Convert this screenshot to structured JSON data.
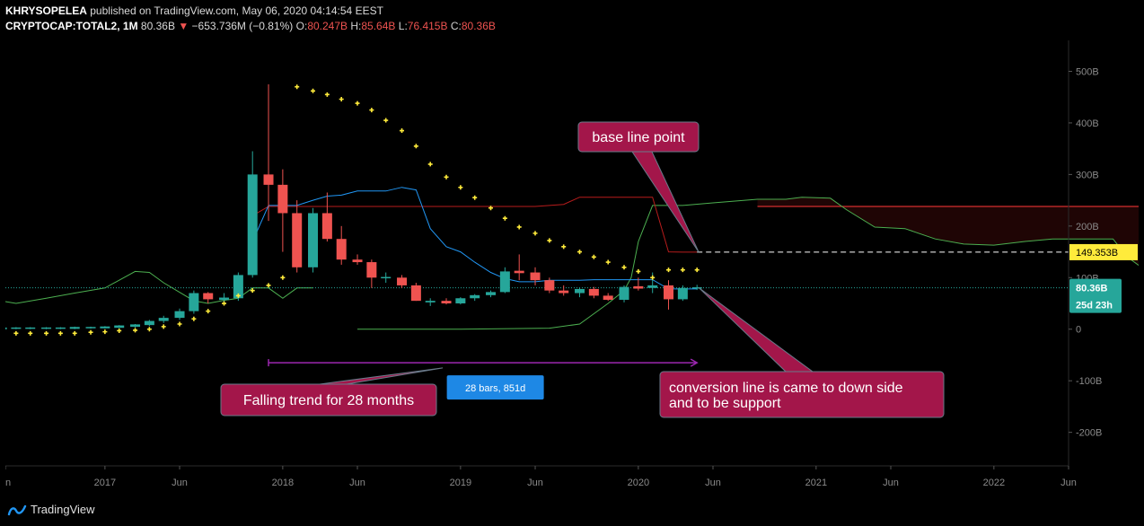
{
  "header": {
    "author": "KHRYSOPELEA",
    "published": "published on TradingView.com, May 06, 2020 04:14:54 EEST",
    "symbol": "CRYPTOCAP:TOTAL2, 1M",
    "last": "80.36B",
    "change": "−653.736M (−0.81%)",
    "o_label": "O:",
    "o_value": "80.247B",
    "h_label": "H:",
    "h_value": "85.64B",
    "l_label": "L:",
    "l_value": "76.415B",
    "c_label": "C:",
    "c_value": "80.36B"
  },
  "footer": {
    "brand": "TradingView"
  },
  "colors": {
    "up": "#26a69a",
    "down": "#ef5350",
    "kijun": "#b71c1c",
    "tenkan": "#2196f3",
    "span": "#4caf50",
    "sar": "#ffeb3b",
    "callout_bg": "#a3164a",
    "measure": "#9c27b0",
    "price_tag": "#26a69a",
    "level_tag": "#ffeb3b"
  },
  "chart_data": {
    "type": "candlestick",
    "ylim": [
      -265,
      560
    ],
    "y_ticks": [
      {
        "value": 500,
        "label": "500B"
      },
      {
        "value": 400,
        "label": "400B"
      },
      {
        "value": 300,
        "label": "300B"
      },
      {
        "value": 200,
        "label": "200B"
      },
      {
        "value": 100,
        "label": "100B"
      },
      {
        "value": 0,
        "label": "0"
      },
      {
        "value": -100,
        "label": "-100B"
      },
      {
        "value": -200,
        "label": "-200B"
      }
    ],
    "x_ticks": [
      {
        "value": 2017.0,
        "label": "2017"
      },
      {
        "value": 2017.42,
        "label": "Jun"
      },
      {
        "value": 2018.0,
        "label": "2018"
      },
      {
        "value": 2018.42,
        "label": "Jun"
      },
      {
        "value": 2019.0,
        "label": "2019"
      },
      {
        "value": 2019.42,
        "label": "Jun"
      },
      {
        "value": 2020.0,
        "label": "2020"
      },
      {
        "value": 2020.42,
        "label": "Jun"
      },
      {
        "value": 2021.0,
        "label": "2021"
      },
      {
        "value": 2021.42,
        "label": "Jun"
      },
      {
        "value": 2022.0,
        "label": "2022"
      },
      {
        "value": 2022.42,
        "label": "Jun"
      },
      {
        "value": 2016.42,
        "label": "n"
      }
    ],
    "candles": [
      {
        "t": 2016.08,
        "o": 0,
        "h": 3,
        "l": -2,
        "c": 1
      },
      {
        "t": 2016.17,
        "o": 1,
        "h": 3,
        "l": -1,
        "c": 1
      },
      {
        "t": 2016.25,
        "o": 1,
        "h": 3,
        "l": -1,
        "c": 1
      },
      {
        "t": 2016.33,
        "o": 1,
        "h": 3,
        "l": -1,
        "c": 1
      },
      {
        "t": 2016.42,
        "o": 1,
        "h": 4,
        "l": -1,
        "c": 2
      },
      {
        "t": 2016.5,
        "o": 2,
        "h": 4,
        "l": 0,
        "c": 2
      },
      {
        "t": 2016.58,
        "o": 2,
        "h": 4,
        "l": 0,
        "c": 2
      },
      {
        "t": 2016.67,
        "o": 2,
        "h": 4,
        "l": 0,
        "c": 2
      },
      {
        "t": 2016.75,
        "o": 2,
        "h": 4,
        "l": 0,
        "c": 2
      },
      {
        "t": 2016.83,
        "o": 2,
        "h": 5,
        "l": 0,
        "c": 3
      },
      {
        "t": 2016.92,
        "o": 3,
        "h": 5,
        "l": 1,
        "c": 3
      },
      {
        "t": 2017.0,
        "o": 3,
        "h": 6,
        "l": 1,
        "c": 4
      },
      {
        "t": 2017.08,
        "o": 4,
        "h": 8,
        "l": 2,
        "c": 6
      },
      {
        "t": 2017.17,
        "o": 6,
        "h": 10,
        "l": 3,
        "c": 8
      },
      {
        "t": 2017.25,
        "o": 8,
        "h": 18,
        "l": 6,
        "c": 16
      },
      {
        "t": 2017.33,
        "o": 16,
        "h": 26,
        "l": 12,
        "c": 22
      },
      {
        "t": 2017.42,
        "o": 22,
        "h": 40,
        "l": 18,
        "c": 35
      },
      {
        "t": 2017.5,
        "o": 35,
        "h": 75,
        "l": 30,
        "c": 70
      },
      {
        "t": 2017.58,
        "o": 70,
        "h": 72,
        "l": 50,
        "c": 58
      },
      {
        "t": 2017.67,
        "o": 58,
        "h": 70,
        "l": 48,
        "c": 60
      },
      {
        "t": 2017.75,
        "o": 60,
        "h": 110,
        "l": 55,
        "c": 105
      },
      {
        "t": 2017.83,
        "o": 105,
        "h": 345,
        "l": 100,
        "c": 300
      },
      {
        "t": 2017.92,
        "o": 300,
        "h": 475,
        "l": 210,
        "c": 280
      },
      {
        "t": 2018.0,
        "o": 280,
        "h": 310,
        "l": 150,
        "c": 225
      },
      {
        "t": 2018.08,
        "o": 225,
        "h": 250,
        "l": 110,
        "c": 120
      },
      {
        "t": 2018.17,
        "o": 120,
        "h": 235,
        "l": 110,
        "c": 225
      },
      {
        "t": 2018.25,
        "o": 225,
        "h": 265,
        "l": 170,
        "c": 175
      },
      {
        "t": 2018.33,
        "o": 175,
        "h": 200,
        "l": 125,
        "c": 135
      },
      {
        "t": 2018.42,
        "o": 135,
        "h": 145,
        "l": 125,
        "c": 130
      },
      {
        "t": 2018.5,
        "o": 130,
        "h": 135,
        "l": 80,
        "c": 100
      },
      {
        "t": 2018.58,
        "o": 100,
        "h": 110,
        "l": 90,
        "c": 100
      },
      {
        "t": 2018.67,
        "o": 100,
        "h": 105,
        "l": 80,
        "c": 85
      },
      {
        "t": 2018.75,
        "o": 85,
        "h": 90,
        "l": 55,
        "c": 55
      },
      {
        "t": 2018.83,
        "o": 52,
        "h": 60,
        "l": 45,
        "c": 55
      },
      {
        "t": 2018.92,
        "o": 55,
        "h": 60,
        "l": 48,
        "c": 50
      },
      {
        "t": 2019.0,
        "o": 50,
        "h": 62,
        "l": 48,
        "c": 60
      },
      {
        "t": 2019.08,
        "o": 60,
        "h": 68,
        "l": 55,
        "c": 66
      },
      {
        "t": 2019.17,
        "o": 66,
        "h": 75,
        "l": 62,
        "c": 72
      },
      {
        "t": 2019.25,
        "o": 72,
        "h": 120,
        "l": 70,
        "c": 112
      },
      {
        "t": 2019.33,
        "o": 112,
        "h": 145,
        "l": 95,
        "c": 110
      },
      {
        "t": 2019.42,
        "o": 110,
        "h": 120,
        "l": 85,
        "c": 95
      },
      {
        "t": 2019.5,
        "o": 95,
        "h": 100,
        "l": 70,
        "c": 75
      },
      {
        "t": 2019.58,
        "o": 75,
        "h": 85,
        "l": 65,
        "c": 70
      },
      {
        "t": 2019.67,
        "o": 70,
        "h": 80,
        "l": 62,
        "c": 78
      },
      {
        "t": 2019.75,
        "o": 78,
        "h": 82,
        "l": 60,
        "c": 65
      },
      {
        "t": 2019.83,
        "o": 65,
        "h": 70,
        "l": 55,
        "c": 57
      },
      {
        "t": 2019.92,
        "o": 57,
        "h": 85,
        "l": 52,
        "c": 82
      },
      {
        "t": 2020.0,
        "o": 82,
        "h": 100,
        "l": 75,
        "c": 80
      },
      {
        "t": 2020.08,
        "o": 80,
        "h": 110,
        "l": 70,
        "c": 85
      },
      {
        "t": 2020.17,
        "o": 85,
        "h": 95,
        "l": 38,
        "c": 58
      },
      {
        "t": 2020.25,
        "o": 58,
        "h": 85,
        "l": 55,
        "c": 80
      },
      {
        "t": 2020.33,
        "o": 80,
        "h": 86,
        "l": 76,
        "c": 80
      }
    ],
    "tenkan": [
      [
        2017.83,
        170
      ],
      [
        2017.92,
        240
      ],
      [
        2018.0,
        240
      ],
      [
        2018.08,
        240
      ],
      [
        2018.17,
        250
      ],
      [
        2018.25,
        258
      ],
      [
        2018.33,
        260
      ],
      [
        2018.42,
        268
      ],
      [
        2018.5,
        268
      ],
      [
        2018.58,
        268
      ],
      [
        2018.67,
        275
      ],
      [
        2018.75,
        270
      ],
      [
        2018.83,
        195
      ],
      [
        2018.92,
        160
      ],
      [
        2019.0,
        150
      ],
      [
        2019.08,
        130
      ],
      [
        2019.17,
        110
      ],
      [
        2019.25,
        98
      ],
      [
        2019.33,
        92
      ],
      [
        2019.42,
        92
      ],
      [
        2019.5,
        95
      ],
      [
        2019.58,
        95
      ],
      [
        2019.67,
        95
      ],
      [
        2019.75,
        96
      ],
      [
        2019.83,
        96
      ],
      [
        2019.92,
        96
      ],
      [
        2020.0,
        96
      ],
      [
        2020.08,
        96
      ],
      [
        2020.17,
        78
      ],
      [
        2020.25,
        78
      ],
      [
        2020.33,
        78
      ]
    ],
    "kijun": [
      [
        2017.83,
        220
      ],
      [
        2017.92,
        238
      ],
      [
        2018.5,
        238
      ],
      [
        2019.0,
        238
      ],
      [
        2019.42,
        238
      ],
      [
        2019.58,
        242
      ],
      [
        2019.67,
        256
      ],
      [
        2020.0,
        256
      ],
      [
        2020.08,
        256
      ],
      [
        2020.17,
        150
      ],
      [
        2020.25,
        149.353
      ],
      [
        2020.33,
        149.353
      ]
    ],
    "chikou": [
      [
        2016.0,
        120
      ],
      [
        2016.08,
        95
      ],
      [
        2016.17,
        100
      ],
      [
        2016.25,
        80
      ],
      [
        2016.33,
        60
      ],
      [
        2016.5,
        50
      ],
      [
        2016.67,
        60
      ],
      [
        2016.83,
        70
      ],
      [
        2017.0,
        80
      ],
      [
        2017.17,
        112
      ],
      [
        2017.25,
        110
      ],
      [
        2017.33,
        90
      ],
      [
        2017.5,
        55
      ],
      [
        2017.58,
        50
      ],
      [
        2017.67,
        56
      ],
      [
        2017.75,
        60
      ],
      [
        2017.83,
        80
      ],
      [
        2017.92,
        80
      ],
      [
        2018.0,
        60
      ],
      [
        2018.08,
        80
      ],
      [
        2018.17,
        80
      ]
    ],
    "span_b": [
      [
        2018.42,
        0
      ],
      [
        2018.92,
        0
      ],
      [
        2019.0,
        0
      ],
      [
        2019.5,
        2
      ],
      [
        2019.67,
        10
      ],
      [
        2019.75,
        30
      ],
      [
        2019.83,
        50
      ],
      [
        2019.92,
        75
      ],
      [
        2019.96,
        100
      ],
      [
        2020.0,
        170
      ],
      [
        2020.08,
        240
      ],
      [
        2020.25,
        240
      ],
      [
        2020.42,
        245
      ],
      [
        2020.67,
        252
      ],
      [
        2020.83,
        252
      ],
      [
        2020.92,
        256
      ],
      [
        2021.08,
        254
      ],
      [
        2021.17,
        232
      ],
      [
        2021.33,
        198
      ],
      [
        2021.5,
        195
      ],
      [
        2021.67,
        175
      ],
      [
        2021.83,
        165
      ],
      [
        2022.0,
        163
      ],
      [
        2022.17,
        170
      ],
      [
        2022.33,
        175
      ],
      [
        2022.5,
        175
      ],
      [
        2022.67,
        175
      ],
      [
        2022.75,
        140
      ],
      [
        2022.83,
        120
      ],
      [
        2022.92,
        115
      ],
      [
        2023.0,
        115
      ]
    ],
    "span_a_cloud": [
      [
        2020.67,
        238
      ],
      [
        2023.0,
        238
      ]
    ],
    "sar": [
      [
        2016.08,
        -8
      ],
      [
        2016.17,
        -8
      ],
      [
        2016.25,
        -8
      ],
      [
        2016.33,
        -8
      ],
      [
        2016.42,
        -8
      ],
      [
        2016.5,
        -8
      ],
      [
        2016.58,
        -8
      ],
      [
        2016.67,
        -8
      ],
      [
        2016.75,
        -8
      ],
      [
        2016.83,
        -8
      ],
      [
        2016.92,
        -6
      ],
      [
        2017.0,
        -5
      ],
      [
        2017.08,
        -3
      ],
      [
        2017.17,
        -2
      ],
      [
        2017.25,
        0
      ],
      [
        2017.33,
        5
      ],
      [
        2017.42,
        10
      ],
      [
        2017.5,
        20
      ],
      [
        2017.58,
        35
      ],
      [
        2017.67,
        50
      ],
      [
        2017.75,
        65
      ],
      [
        2017.83,
        75
      ],
      [
        2017.92,
        85
      ],
      [
        2018.0,
        100
      ],
      [
        2018.08,
        470
      ],
      [
        2018.17,
        462
      ],
      [
        2018.25,
        455
      ],
      [
        2018.33,
        446
      ],
      [
        2018.42,
        438
      ],
      [
        2018.5,
        425
      ],
      [
        2018.58,
        405
      ],
      [
        2018.67,
        385
      ],
      [
        2018.75,
        355
      ],
      [
        2018.83,
        320
      ],
      [
        2018.92,
        295
      ],
      [
        2019.0,
        275
      ],
      [
        2019.08,
        255
      ],
      [
        2019.17,
        235
      ],
      [
        2019.25,
        215
      ],
      [
        2019.33,
        198
      ],
      [
        2019.42,
        186
      ],
      [
        2019.5,
        172
      ],
      [
        2019.58,
        160
      ],
      [
        2019.67,
        150
      ],
      [
        2019.75,
        140
      ],
      [
        2019.83,
        130
      ],
      [
        2019.92,
        120
      ],
      [
        2020.0,
        112
      ],
      [
        2020.08,
        100
      ],
      [
        2020.17,
        115
      ],
      [
        2020.25,
        115
      ],
      [
        2020.33,
        115
      ]
    ],
    "last_price": {
      "value": 80.36,
      "label": "80.36B",
      "countdown": "25d 23h"
    },
    "level": {
      "value": 149.353,
      "label": "149.353B"
    },
    "measure": {
      "x1": 2017.92,
      "x2": 2020.33,
      "y": -65,
      "label": "28 bars, 851d"
    },
    "callouts": [
      {
        "text": "base line point"
      },
      {
        "text_line1": "conversion line is came to down side",
        "text_line2": "and to be support"
      },
      {
        "text": "Falling trend for 28 months"
      }
    ]
  }
}
